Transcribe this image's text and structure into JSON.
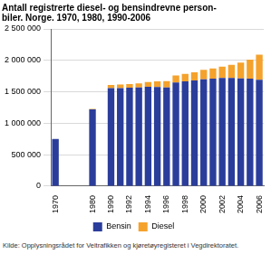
{
  "chart_data": {
    "type": "bar",
    "title": [
      "Antall registrerte diesel- og bensindrevne person-",
      "biler. Norge. 1970, 1980, 1990-2006"
    ],
    "source": "Kilde: Opplysningsrådet for Veitrafikken og kjøretøyregisteret i Vegdirektoratet.",
    "categories": [
      "1970",
      null,
      null,
      null,
      "1980",
      null,
      "1990",
      null,
      "1992",
      null,
      "1994",
      null,
      "1996",
      null,
      "1998",
      null,
      "2000",
      null,
      "2002",
      null,
      "2004",
      null,
      "2006"
    ],
    "series": [
      {
        "name": "Bensin",
        "color": "#2b3d9b",
        "values": [
          750000,
          null,
          null,
          null,
          1220000,
          null,
          1560000,
          1560000,
          1565000,
          1570000,
          1580000,
          1575000,
          1570000,
          1650000,
          1665000,
          1680000,
          1700000,
          1710000,
          1720000,
          1720000,
          1715000,
          1710000,
          1690000
        ]
      },
      {
        "name": "Diesel",
        "color": "#f4a22c",
        "values": [
          0,
          null,
          null,
          null,
          10000,
          null,
          50000,
          55000,
          60000,
          65000,
          75000,
          90000,
          100000,
          110000,
          120000,
          130000,
          150000,
          160000,
          180000,
          210000,
          250000,
          300000,
          400000
        ]
      }
    ],
    "stacked": true,
    "ylim": [
      0,
      2500000
    ],
    "yticks": [
      0,
      {
        "value": 500000,
        "label": "500 000"
      },
      {
        "value": 1000000,
        "label": "1 000 000"
      },
      {
        "value": 1500000,
        "label": "1 500 000"
      },
      {
        "value": 2000000,
        "label": "2 000 000"
      },
      {
        "value": 2500000,
        "label": "2 500 000"
      }
    ],
    "grid": true,
    "legend": "bottom"
  }
}
